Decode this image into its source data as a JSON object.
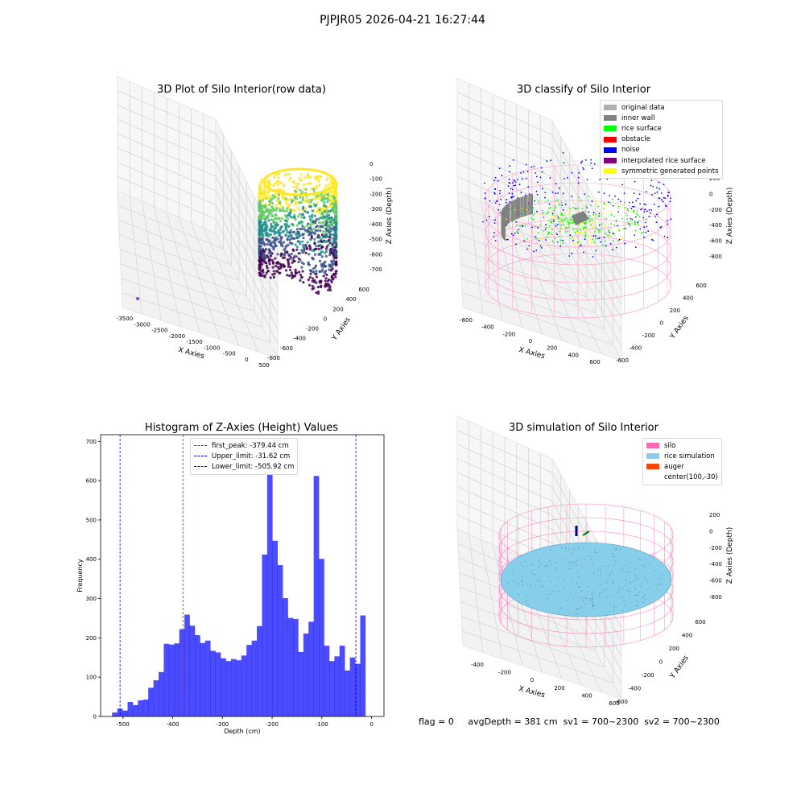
{
  "figure": {
    "suptitle": "PJPJR05 2026-04-21 16:27:44",
    "status_line": "flag = 0     avgDepth = 381 cm  sv1 = 700~2300  sv2 = 700~2300"
  },
  "panels": {
    "raw": {
      "title": "3D Plot of Silo Interior(row data)",
      "xlabel": "X Axies",
      "ylabel": "Y Axies",
      "zlabel": "Z Axies (Depth)",
      "xticks": [
        "-3500",
        "-3000",
        "-2500",
        "-2000",
        "-1500",
        "-1000",
        "-500",
        "0",
        "500"
      ],
      "yticks": [
        "-800",
        "-600",
        "-400",
        "-200",
        "0",
        "200",
        "400",
        "600"
      ],
      "zticks": [
        "0",
        "-100",
        "-200",
        "-300",
        "-400",
        "-500",
        "-600",
        "-700"
      ],
      "colormap": [
        "#440154",
        "#3b528b",
        "#21918c",
        "#5ec962",
        "#fde725"
      ]
    },
    "classify": {
      "title": "3D classify of Silo Interior",
      "xlabel": "X Axies",
      "ylabel": "Y Axies",
      "zlabel": "Z Axies (Depth)",
      "xticks": [
        "-600",
        "-400",
        "-200",
        "0",
        "200",
        "400",
        "600"
      ],
      "yticks": [
        "-600",
        "-400",
        "-200",
        "0",
        "200",
        "400",
        "600"
      ],
      "zticks": [
        "200",
        "0",
        "-200",
        "-400",
        "-600",
        "-800"
      ],
      "legend": [
        {
          "label": "original data",
          "color": "#b0b0b0"
        },
        {
          "label": "inner wall",
          "color": "#808080"
        },
        {
          "label": "rice surface",
          "color": "#00ff00"
        },
        {
          "label": "obstacle",
          "color": "#ff0000"
        },
        {
          "label": "noise",
          "color": "#0000ff"
        },
        {
          "label": "interpolated rice surface",
          "color": "#800080"
        },
        {
          "label": "symmetric generated points",
          "color": "#ffff00"
        }
      ]
    },
    "simulation": {
      "title": "3D simulation of Silo Interior",
      "xlabel": "X Axies",
      "ylabel": "Y Axies",
      "zlabel": "Z Axies (Depth)",
      "xticks": [
        "-400",
        "-200",
        "0",
        "200",
        "400",
        "600"
      ],
      "yticks": [
        "-600",
        "-400",
        "-200",
        "0",
        "200",
        "400",
        "600"
      ],
      "zticks": [
        "200",
        "0",
        "-200",
        "-400",
        "-600",
        "-800"
      ],
      "legend": [
        {
          "label": "silo",
          "color": "#ff69b4"
        },
        {
          "label": "rice simulation",
          "color": "#87ceeb"
        },
        {
          "label": "auger",
          "color": "#ff4500"
        },
        {
          "label": "center(100,-30)",
          "color": ""
        }
      ]
    }
  },
  "chart_data": [
    {
      "type": "bar",
      "title": "Histogram of Z-Axies (Height) Values",
      "xlabel": "Depth (cm)",
      "ylabel": "Frequency",
      "xlim": [
        -545,
        25
      ],
      "ylim": [
        0,
        717
      ],
      "bar_color": "#0000ff",
      "bar_alpha": 0.7,
      "xticks": [
        -500,
        -400,
        -300,
        -200,
        -100,
        0
      ],
      "yticks": [
        0,
        100,
        200,
        300,
        400,
        500,
        600,
        700
      ],
      "bin_start": -522,
      "bin_width": 10.4,
      "values": [
        10,
        20,
        15,
        37,
        29,
        41,
        43,
        73,
        92,
        113,
        185,
        183,
        186,
        222,
        259,
        231,
        207,
        187,
        193,
        167,
        163,
        148,
        141,
        146,
        143,
        155,
        182,
        193,
        230,
        412,
        672,
        447,
        385,
        301,
        251,
        248,
        164,
        211,
        241,
        612,
        401,
        180,
        141,
        153,
        180,
        117,
        150,
        134,
        257
      ],
      "lines": [
        {
          "x": -379.44,
          "color": "#ff0000",
          "label": "first_peak: -379.44 cm"
        },
        {
          "x": -31.62,
          "color": "#0000ff",
          "label": "Upper_limit: -31.62 cm"
        },
        {
          "x": -505.92,
          "color": "#0000ff",
          "label": "Lower_limit: -505.92 cm"
        }
      ]
    }
  ]
}
